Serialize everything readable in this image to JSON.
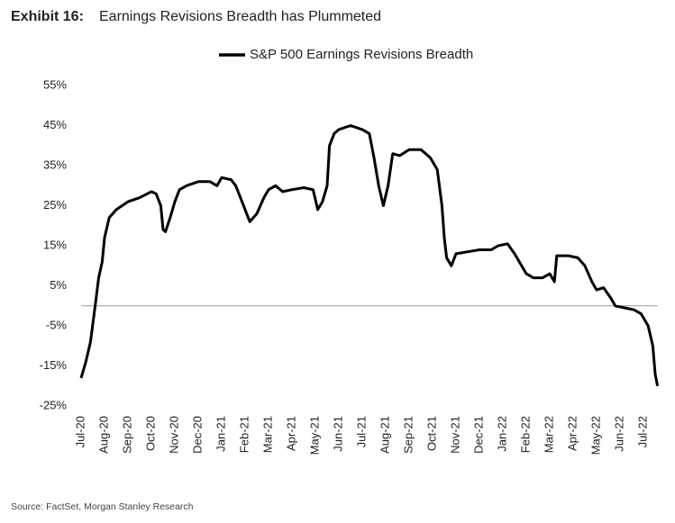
{
  "chart_data": {
    "type": "line",
    "exhibit": "Exhibit 16:",
    "title": "Earnings Revisions Breadth has Plummeted",
    "source": "Source: FactSet, Morgan Stanley Research",
    "reference_line": 0,
    "xlim": [
      0,
      24.6
    ],
    "xticks": [
      {
        "value": 0,
        "label": "Jul-20"
      },
      {
        "value": 1,
        "label": "Aug-20"
      },
      {
        "value": 2,
        "label": "Sep-20"
      },
      {
        "value": 3,
        "label": "Oct-20"
      },
      {
        "value": 4,
        "label": "Nov-20"
      },
      {
        "value": 5,
        "label": "Dec-20"
      },
      {
        "value": 6,
        "label": "Jan-21"
      },
      {
        "value": 7,
        "label": "Feb-21"
      },
      {
        "value": 8,
        "label": "Mar-21"
      },
      {
        "value": 9,
        "label": "Apr-21"
      },
      {
        "value": 10,
        "label": "May-21"
      },
      {
        "value": 11,
        "label": "Jun-21"
      },
      {
        "value": 12,
        "label": "Jul-21"
      },
      {
        "value": 13,
        "label": "Aug-21"
      },
      {
        "value": 14,
        "label": "Sep-21"
      },
      {
        "value": 15,
        "label": "Oct-21"
      },
      {
        "value": 16,
        "label": "Nov-21"
      },
      {
        "value": 17,
        "label": "Dec-21"
      },
      {
        "value": 18,
        "label": "Jan-22"
      },
      {
        "value": 19,
        "label": "Feb-22"
      },
      {
        "value": 20,
        "label": "Mar-22"
      },
      {
        "value": 21,
        "label": "Apr-22"
      },
      {
        "value": 22,
        "label": "May-22"
      },
      {
        "value": 23,
        "label": "Jun-22"
      },
      {
        "value": 24,
        "label": "Jul-22"
      }
    ],
    "ylim": [
      -25,
      55
    ],
    "yticks": [
      {
        "value": 55,
        "label": "55%"
      },
      {
        "value": 45,
        "label": "45%"
      },
      {
        "value": 35,
        "label": "35%"
      },
      {
        "value": 25,
        "label": "25%"
      },
      {
        "value": 15,
        "label": "15%"
      },
      {
        "value": 5,
        "label": "5%"
      },
      {
        "value": -5,
        "label": "-5%"
      },
      {
        "value": -15,
        "label": "-15%"
      },
      {
        "value": -25,
        "label": "-25%"
      }
    ],
    "x": [
      0,
      0.2,
      0.4,
      0.6,
      0.75,
      0.9,
      1.0,
      1.2,
      1.5,
      2.0,
      2.5,
      3.0,
      3.2,
      3.4,
      3.5,
      3.6,
      3.8,
      4.0,
      4.2,
      4.5,
      5.0,
      5.5,
      5.8,
      6.0,
      6.4,
      6.6,
      6.8,
      7.0,
      7.2,
      7.5,
      7.8,
      8.0,
      8.3,
      8.6,
      9.0,
      9.5,
      9.9,
      10.1,
      10.3,
      10.5,
      10.6,
      10.8,
      11.0,
      11.5,
      12.0,
      12.3,
      12.5,
      12.7,
      12.9,
      13.1,
      13.3,
      13.6,
      14.0,
      14.5,
      14.9,
      15.2,
      15.4,
      15.5,
      15.6,
      15.8,
      16.0,
      16.5,
      17.0,
      17.5,
      17.8,
      18.2,
      18.5,
      18.8,
      19.0,
      19.3,
      19.7,
      20.0,
      20.2,
      20.3,
      20.8,
      21.2,
      21.5,
      21.8,
      22.0,
      22.3,
      22.6,
      22.8,
      23.2,
      23.6,
      23.9,
      24.2,
      24.4,
      24.5,
      24.6
    ],
    "series": [
      {
        "name": "S&P 500 Earnings Revisions Breadth",
        "color": "#000000",
        "values": [
          -18,
          -14,
          -9,
          0,
          7,
          11,
          17,
          22,
          24,
          26,
          27,
          28.5,
          28,
          25,
          19,
          18.5,
          22,
          26,
          29,
          30,
          31,
          31,
          30,
          32,
          31.5,
          30,
          27,
          24,
          21,
          23,
          27,
          29,
          30,
          28.5,
          29,
          29.5,
          29,
          24,
          26,
          30,
          40,
          43,
          44,
          45,
          44,
          43,
          37,
          30,
          25,
          30,
          38,
          37.5,
          39,
          39,
          37,
          34,
          25,
          17,
          12,
          10,
          13,
          13.5,
          14,
          14,
          15,
          15.5,
          13,
          10,
          8,
          7,
          7,
          8,
          6,
          12.5,
          12.5,
          12,
          10,
          6,
          4,
          4.5,
          2,
          0,
          -0.5,
          -1,
          -2,
          -5,
          -10,
          -17,
          -20
        ]
      }
    ]
  }
}
